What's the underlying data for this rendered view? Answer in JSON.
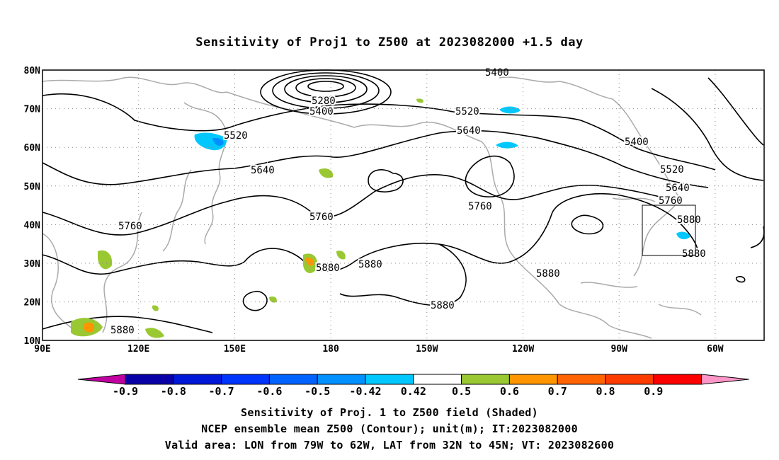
{
  "title": "Sensitivity of Proj1 to Z500 at 2023082000 +1.5 day",
  "map": {
    "lat_labels": [
      "80N",
      "70N",
      "60N",
      "50N",
      "40N",
      "30N",
      "20N",
      "10N"
    ],
    "lon_labels": [
      "90E",
      "120E",
      "150E",
      "180",
      "150W",
      "120W",
      "90W",
      "60W"
    ],
    "contour_labels": [
      "5280",
      "5400",
      "5400",
      "5400",
      "5520",
      "5520",
      "5520",
      "5640",
      "5640",
      "5640",
      "5760",
      "5760",
      "5760",
      "5760",
      "5880",
      "5880",
      "5880",
      "5880",
      "5880",
      "5880",
      "5880"
    ],
    "valid_area": {
      "lon_from": "79W",
      "lon_to": "62W",
      "lat_from": "32N",
      "lat_to": "45N"
    }
  },
  "colorbar": {
    "labels": [
      "-0.9",
      "-0.8",
      "-0.7",
      "-0.6",
      "-0.5",
      "-0.42",
      "0.42",
      "0.5",
      "0.6",
      "0.7",
      "0.8",
      "0.9"
    ],
    "colors": [
      "#c000a0",
      "#0a00a8",
      "#0019d8",
      "#0035ff",
      "#0062ff",
      "#0090ff",
      "#00c8ff",
      "#ffffff",
      "#99c832",
      "#ff9600",
      "#ff6400",
      "#ff3c00",
      "#ff0000",
      "#ff96c8"
    ]
  },
  "caption": {
    "line1": "Sensitivity of Proj. 1 to Z500 field (Shaded)",
    "line2": "NCEP ensemble mean Z500 (Contour); unit(m); IT:2023082000",
    "line3": "Valid area: LON from 79W to 62W, LAT from 32N to 45N; VT: 2023082600"
  }
}
